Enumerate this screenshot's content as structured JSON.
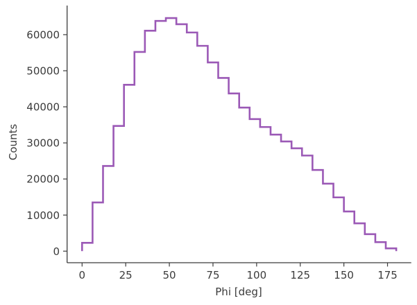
{
  "chart_data": {
    "type": "histogram",
    "title": "",
    "xlabel": "Phi [deg]",
    "ylabel": "Counts",
    "xlim": [
      -7.2,
      187.2
    ],
    "ylim": [
      -3300,
      68000
    ],
    "grid": false,
    "legend": null,
    "line_color": "#9b59b6",
    "histtype": "step",
    "bin_width": 6,
    "bin_edges": [
      0,
      6,
      12,
      18,
      24,
      30,
      36,
      42,
      48,
      54,
      60,
      66,
      72,
      78,
      84,
      90,
      96,
      102,
      108,
      114,
      120,
      126,
      132,
      138,
      144,
      150,
      156,
      162,
      168,
      174,
      180
    ],
    "values": [
      2300,
      13500,
      23600,
      34700,
      46100,
      55200,
      61100,
      63800,
      64600,
      62900,
      60600,
      56900,
      52300,
      48000,
      43700,
      39800,
      36600,
      34400,
      32300,
      30400,
      28500,
      26500,
      22500,
      18700,
      14900,
      11000,
      7700,
      4700,
      2500,
      770
    ],
    "x_ticks": [
      0,
      25,
      50,
      75,
      100,
      125,
      150,
      175
    ],
    "x_tick_labels": [
      "0",
      "25",
      "50",
      "75",
      "100",
      "125",
      "150",
      "175"
    ],
    "y_ticks": [
      0,
      10000,
      20000,
      30000,
      40000,
      50000,
      60000
    ],
    "y_tick_labels": [
      "0",
      "10000",
      "20000",
      "30000",
      "40000",
      "50000",
      "60000"
    ]
  },
  "axes": {
    "xlabel": "Phi [deg]",
    "ylabel": "Counts"
  }
}
